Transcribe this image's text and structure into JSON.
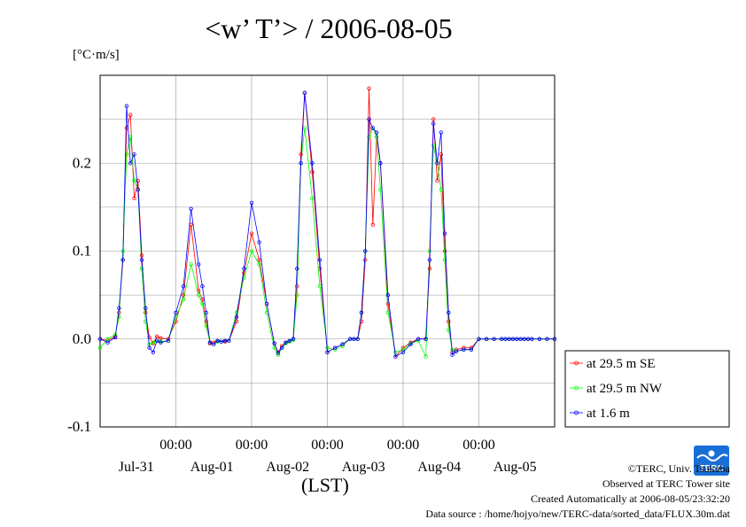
{
  "chart_data": {
    "type": "line",
    "title": "<w’ T’> / 2006-08-05",
    "ylabel": "[°C·m/s]",
    "xlabel": "(LST)",
    "ylim": [
      -0.1,
      0.3
    ],
    "xlim": [
      -1.0,
      5.0
    ],
    "y_ticks": [
      -0.1,
      0.0,
      0.1,
      0.2
    ],
    "y_tick_labels": [
      "-0.1",
      "0.0",
      "0.1",
      "0.2"
    ],
    "x_time_labels": [
      "00:00",
      "00:00",
      "00:00",
      "00:00",
      "00:00"
    ],
    "x_date_labels": [
      "Jul-31",
      "Aug-01",
      "Aug-02",
      "Aug-03",
      "Aug-04",
      "Aug-05"
    ],
    "grid": true,
    "legend_position": "right",
    "series": [
      {
        "name": "at 29.5 m SE",
        "color": "#ff0000",
        "x": [
          -1.0,
          -0.9,
          -0.8,
          -0.75,
          -0.7,
          -0.65,
          -0.6,
          -0.55,
          -0.5,
          -0.45,
          -0.4,
          -0.35,
          -0.3,
          -0.25,
          -0.2,
          -0.1,
          0.0,
          0.1,
          0.2,
          0.3,
          0.35,
          0.4,
          0.45,
          0.5,
          0.55,
          0.6,
          0.65,
          0.7,
          0.8,
          0.9,
          1.0,
          1.1,
          1.2,
          1.3,
          1.35,
          1.4,
          1.45,
          1.5,
          1.55,
          1.6,
          1.65,
          1.7,
          1.8,
          1.9,
          2.0,
          2.1,
          2.2,
          2.3,
          2.35,
          2.4,
          2.45,
          2.5,
          2.55,
          2.6,
          2.65,
          2.7,
          2.8,
          2.9,
          3.0,
          3.1,
          3.2,
          3.3,
          3.35,
          3.4,
          3.45,
          3.5,
          3.55,
          3.6,
          3.65,
          3.7,
          3.8,
          3.9,
          4.0,
          4.1,
          4.2,
          4.3,
          4.35,
          4.4,
          4.45,
          4.5,
          4.55,
          4.6,
          4.65,
          4.7,
          4.8,
          4.9,
          5.0
        ],
        "y": [
          0.0,
          -0.002,
          0.003,
          0.03,
          0.09,
          0.24,
          0.255,
          0.16,
          0.18,
          0.095,
          0.03,
          0.002,
          -0.005,
          0.003,
          0.001,
          0.0,
          0.02,
          0.05,
          0.13,
          0.055,
          0.045,
          0.02,
          -0.005,
          -0.004,
          -0.002,
          -0.003,
          -0.003,
          -0.002,
          0.02,
          0.075,
          0.12,
          0.09,
          0.04,
          -0.005,
          -0.015,
          -0.008,
          -0.004,
          -0.002,
          0.0,
          0.06,
          0.21,
          0.28,
          0.19,
          0.08,
          -0.015,
          -0.01,
          -0.006,
          0.0,
          0.0,
          0.0,
          0.02,
          0.09,
          0.285,
          0.13,
          0.23,
          0.2,
          0.04,
          -0.02,
          -0.01,
          -0.004,
          0.0,
          0.0,
          0.08,
          0.25,
          0.18,
          0.21,
          0.1,
          0.02,
          -0.015,
          -0.012,
          -0.01,
          -0.01,
          0.0,
          0.0,
          0.0,
          0.0,
          0.0,
          0.0,
          0.0,
          0.0,
          0.0,
          0.0,
          0.0,
          0.0,
          0.0,
          0.0,
          0.0
        ]
      },
      {
        "name": "at 29.5 m NW",
        "color": "#00ff00",
        "x": [
          -1.0,
          -0.9,
          -0.8,
          -0.75,
          -0.7,
          -0.65,
          -0.6,
          -0.55,
          -0.5,
          -0.45,
          -0.4,
          -0.35,
          -0.3,
          -0.25,
          -0.2,
          -0.1,
          0.0,
          0.1,
          0.2,
          0.3,
          0.35,
          0.4,
          0.45,
          0.5,
          0.55,
          0.6,
          0.65,
          0.7,
          0.8,
          0.9,
          1.0,
          1.1,
          1.2,
          1.3,
          1.35,
          1.4,
          1.45,
          1.5,
          1.55,
          1.6,
          1.65,
          1.7,
          1.8,
          1.9,
          2.0,
          2.1,
          2.2,
          2.3,
          2.35,
          2.4,
          2.45,
          2.5,
          2.55,
          2.6,
          2.65,
          2.7,
          2.8,
          2.9,
          3.0,
          3.1,
          3.2,
          3.3,
          3.35,
          3.4,
          3.45,
          3.5,
          3.55,
          3.6,
          3.65,
          3.7,
          3.8,
          3.9,
          4.0,
          4.1,
          4.2,
          4.3,
          4.35,
          4.4,
          4.45,
          4.5,
          4.55,
          4.6,
          4.65,
          4.7,
          4.8,
          4.9,
          5.0
        ],
        "y": [
          -0.01,
          0.0,
          0.005,
          0.025,
          0.1,
          0.21,
          0.23,
          0.18,
          0.17,
          0.08,
          0.02,
          -0.006,
          -0.004,
          -0.002,
          -0.003,
          -0.002,
          0.025,
          0.045,
          0.085,
          0.05,
          0.04,
          0.015,
          -0.004,
          -0.006,
          -0.003,
          -0.003,
          -0.002,
          -0.002,
          0.03,
          0.07,
          0.1,
          0.085,
          0.03,
          -0.01,
          -0.018,
          -0.01,
          -0.005,
          -0.003,
          -0.001,
          0.05,
          0.2,
          0.24,
          0.16,
          0.06,
          -0.01,
          -0.012,
          -0.008,
          0.0,
          0.0,
          0.0,
          0.03,
          0.1,
          0.23,
          0.24,
          0.23,
          0.17,
          0.03,
          -0.015,
          -0.012,
          -0.005,
          -0.002,
          -0.02,
          0.1,
          0.22,
          0.2,
          0.17,
          0.09,
          0.01,
          -0.012,
          -0.014,
          -0.012,
          -0.012,
          0.0,
          0.0,
          0.0,
          0.0,
          0.0,
          0.0,
          0.0,
          0.0,
          0.0,
          0.0,
          0.0,
          0.0,
          0.0,
          0.0,
          0.0
        ]
      },
      {
        "name": "at 1.6 m",
        "color": "#0000ff",
        "x": [
          -1.0,
          -0.9,
          -0.8,
          -0.75,
          -0.7,
          -0.65,
          -0.6,
          -0.55,
          -0.5,
          -0.45,
          -0.4,
          -0.35,
          -0.3,
          -0.25,
          -0.2,
          -0.1,
          0.0,
          0.1,
          0.2,
          0.3,
          0.35,
          0.4,
          0.45,
          0.5,
          0.55,
          0.6,
          0.65,
          0.7,
          0.8,
          0.9,
          1.0,
          1.1,
          1.2,
          1.3,
          1.35,
          1.4,
          1.45,
          1.5,
          1.55,
          1.6,
          1.65,
          1.7,
          1.8,
          1.9,
          2.0,
          2.1,
          2.2,
          2.3,
          2.35,
          2.4,
          2.45,
          2.5,
          2.55,
          2.6,
          2.65,
          2.7,
          2.8,
          2.9,
          3.0,
          3.1,
          3.2,
          3.3,
          3.35,
          3.4,
          3.45,
          3.5,
          3.55,
          3.6,
          3.65,
          3.7,
          3.8,
          3.9,
          4.0,
          4.1,
          4.2,
          4.3,
          4.35,
          4.4,
          4.45,
          4.5,
          4.55,
          4.6,
          4.65,
          4.7,
          4.8,
          4.9,
          5.0
        ],
        "y": [
          0.0,
          -0.004,
          0.002,
          0.035,
          0.09,
          0.265,
          0.2,
          0.21,
          0.17,
          0.09,
          0.035,
          -0.01,
          -0.015,
          -0.002,
          -0.004,
          -0.002,
          0.03,
          0.06,
          0.148,
          0.085,
          0.06,
          0.03,
          -0.004,
          -0.006,
          -0.002,
          -0.003,
          -0.002,
          -0.002,
          0.025,
          0.08,
          0.155,
          0.11,
          0.04,
          -0.005,
          -0.016,
          -0.01,
          -0.004,
          -0.002,
          0.0,
          0.08,
          0.2,
          0.28,
          0.2,
          0.09,
          -0.015,
          -0.01,
          -0.006,
          0.0,
          0.0,
          0.0,
          0.03,
          0.1,
          0.25,
          0.24,
          0.235,
          0.2,
          0.05,
          -0.02,
          -0.015,
          -0.006,
          0.0,
          0.0,
          0.09,
          0.245,
          0.2,
          0.235,
          0.12,
          0.03,
          -0.018,
          -0.014,
          -0.012,
          -0.012,
          0.0,
          0.0,
          0.0,
          0.0,
          0.0,
          0.0,
          0.0,
          0.0,
          0.0,
          0.0,
          0.0,
          0.0,
          0.0,
          0.0,
          0.0
        ]
      }
    ]
  },
  "credits": {
    "copyright": "©TERC, Univ. Tsukuba",
    "observed": "Observed at TERC Tower site",
    "created": "Created Automatically at 2006-08-05/23:32:20",
    "source": "Data source : /home/hojyo/new/TERC-data/sorted_data/FLUX.30m.dat"
  },
  "logo": {
    "icon": "terc-logo",
    "text": "TERC",
    "color": "#1a6fd6"
  }
}
